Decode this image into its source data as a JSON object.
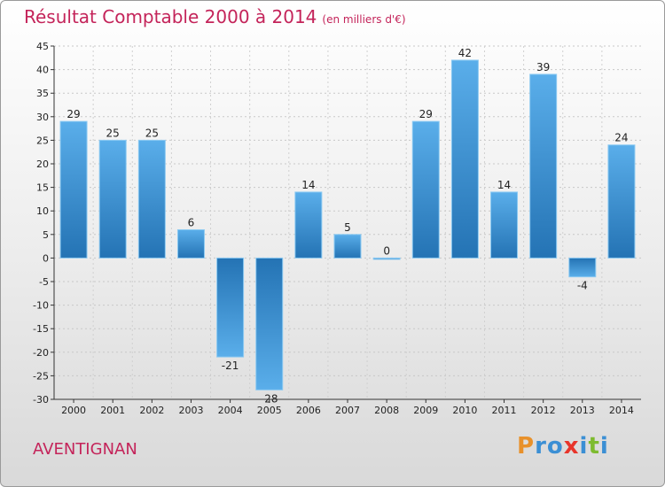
{
  "chart_data": {
    "type": "bar",
    "title": "Résultat Comptable 2000 à 2014",
    "subtitle": "(en milliers d'€)",
    "categories": [
      "2000",
      "2001",
      "2002",
      "2003",
      "2004",
      "2005",
      "2006",
      "2007",
      "2008",
      "2009",
      "2010",
      "2011",
      "2012",
      "2013",
      "2014"
    ],
    "values": [
      29,
      25,
      25,
      6,
      -21,
      -28,
      14,
      5,
      0,
      29,
      42,
      14,
      39,
      -4,
      24
    ],
    "ylim": [
      -30,
      45
    ],
    "yticks": [
      45,
      40,
      35,
      30,
      25,
      20,
      15,
      10,
      5,
      0,
      -5,
      -10,
      -15,
      -20,
      -25,
      -30
    ],
    "xlabel": "",
    "ylabel": "",
    "grid": true,
    "bar_color": "#3c8fd0"
  },
  "commune": "AVENTIGNAN",
  "brand": {
    "letters": [
      "P",
      "r",
      "o",
      "x",
      "i",
      "t",
      "i"
    ],
    "colors": [
      "#e8912b",
      "#3b8fd4",
      "#3b8fd4",
      "#e8352b",
      "#3b8fd4",
      "#7dbb2f",
      "#3b8fd4"
    ]
  }
}
